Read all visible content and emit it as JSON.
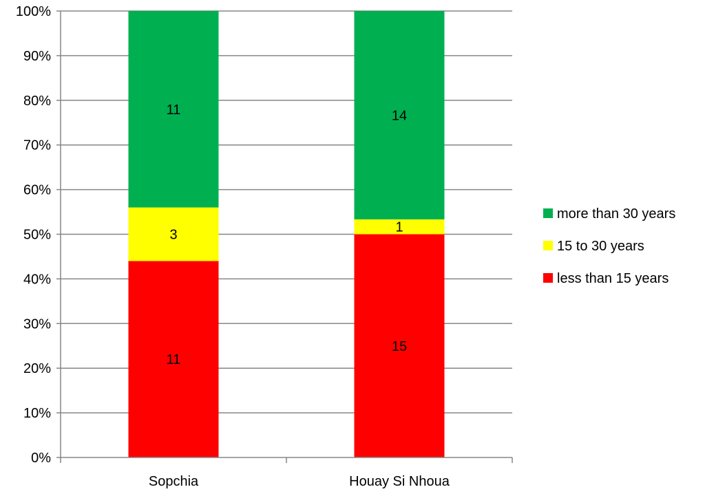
{
  "chart_data": {
    "type": "bar",
    "stacked": true,
    "normalized": true,
    "title": "",
    "xlabel": "",
    "ylabel": "",
    "categories": [
      "Sopchia",
      "Houay Si Nhoua"
    ],
    "series": [
      {
        "name": "less than 15 years",
        "color": "#ff0000",
        "values": [
          11,
          15
        ]
      },
      {
        "name": "15 to 30 years",
        "color": "#ffff00",
        "values": [
          3,
          1
        ]
      },
      {
        "name": "more than 30 years",
        "color": "#00b050",
        "values": [
          11,
          14
        ]
      }
    ],
    "ylim": [
      0,
      100
    ],
    "y_ticks": [
      "0%",
      "10%",
      "20%",
      "30%",
      "40%",
      "50%",
      "60%",
      "70%",
      "80%",
      "90%",
      "100%"
    ],
    "grid": true,
    "legend_position": "right",
    "legend_order": [
      "more than 30 years",
      "15 to 30 years",
      "less than 15 years"
    ]
  }
}
